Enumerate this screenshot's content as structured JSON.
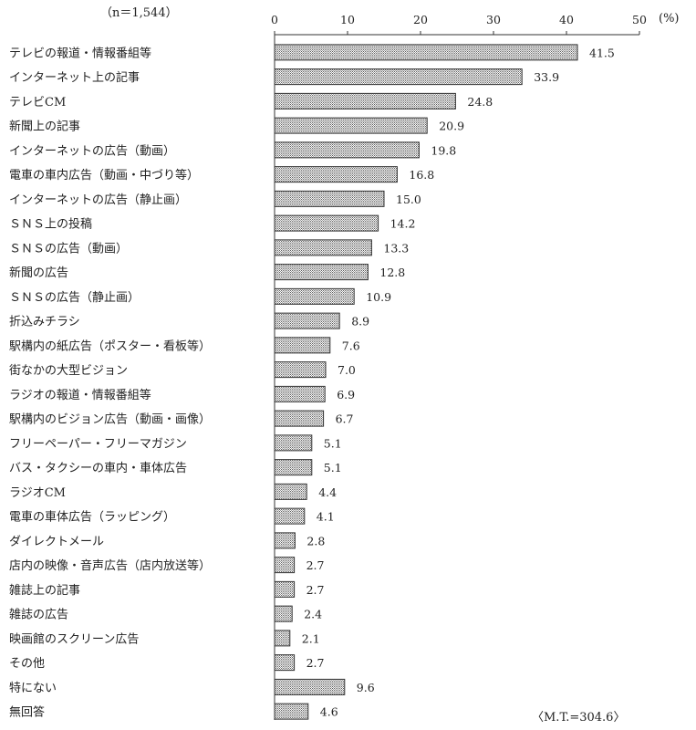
{
  "chart_data": {
    "type": "bar",
    "orientation": "horizontal",
    "sample_size": "（n＝1,544）",
    "unit": "(%)",
    "xlim": [
      0,
      50
    ],
    "ticks": [
      0,
      10,
      20,
      30,
      40,
      50
    ],
    "tick_labels": [
      "0",
      "10",
      "20",
      "30",
      "40",
      "50"
    ],
    "grid": false,
    "bar_fill": "dotted gray",
    "total_note": "〈M.T.=304.6〉",
    "categories": [
      "テレビの報道・情報番組等",
      "インターネット上の記事",
      "テレビCM",
      "新聞上の記事",
      "インターネットの広告（動画）",
      "電車の車内広告（動画・中づり等）",
      "インターネットの広告（静止画）",
      "ＳＮＳ上の投稿",
      "ＳＮＳの広告（動画）",
      "新聞の広告",
      "ＳＮＳの広告（静止画）",
      "折込みチラシ",
      "駅構内の紙広告（ポスター・看板等）",
      "街なかの大型ビジョン",
      "ラジオの報道・情報番組等",
      "駅構内のビジョン広告（動画・画像）",
      "フリーペーパー・フリーマガジン",
      "バス・タクシーの車内・車体広告",
      "ラジオCM",
      "電車の車体広告（ラッピング）",
      "ダイレクトメール",
      "店内の映像・音声広告（店内放送等）",
      "雑誌上の記事",
      "雑誌の広告",
      "映画館のスクリーン広告",
      "その他",
      "特にない",
      "無回答"
    ],
    "values": [
      41.5,
      33.9,
      24.8,
      20.9,
      19.8,
      16.8,
      15.0,
      14.2,
      13.3,
      12.8,
      10.9,
      8.9,
      7.6,
      7.0,
      6.9,
      6.7,
      5.1,
      5.1,
      4.4,
      4.1,
      2.8,
      2.7,
      2.7,
      2.4,
      2.1,
      2.7,
      9.6,
      4.6
    ],
    "value_labels": [
      "41.5",
      "33.9",
      "24.8",
      "20.9",
      "19.8",
      "16.8",
      "15.0",
      "14.2",
      "13.3",
      "12.8",
      "10.9",
      "8.9",
      "7.6",
      "7.0",
      "6.9",
      "6.7",
      "5.1",
      "5.1",
      "4.4",
      "4.1",
      "2.8",
      "2.7",
      "2.7",
      "2.4",
      "2.1",
      "2.7",
      "9.6",
      "4.6"
    ]
  }
}
